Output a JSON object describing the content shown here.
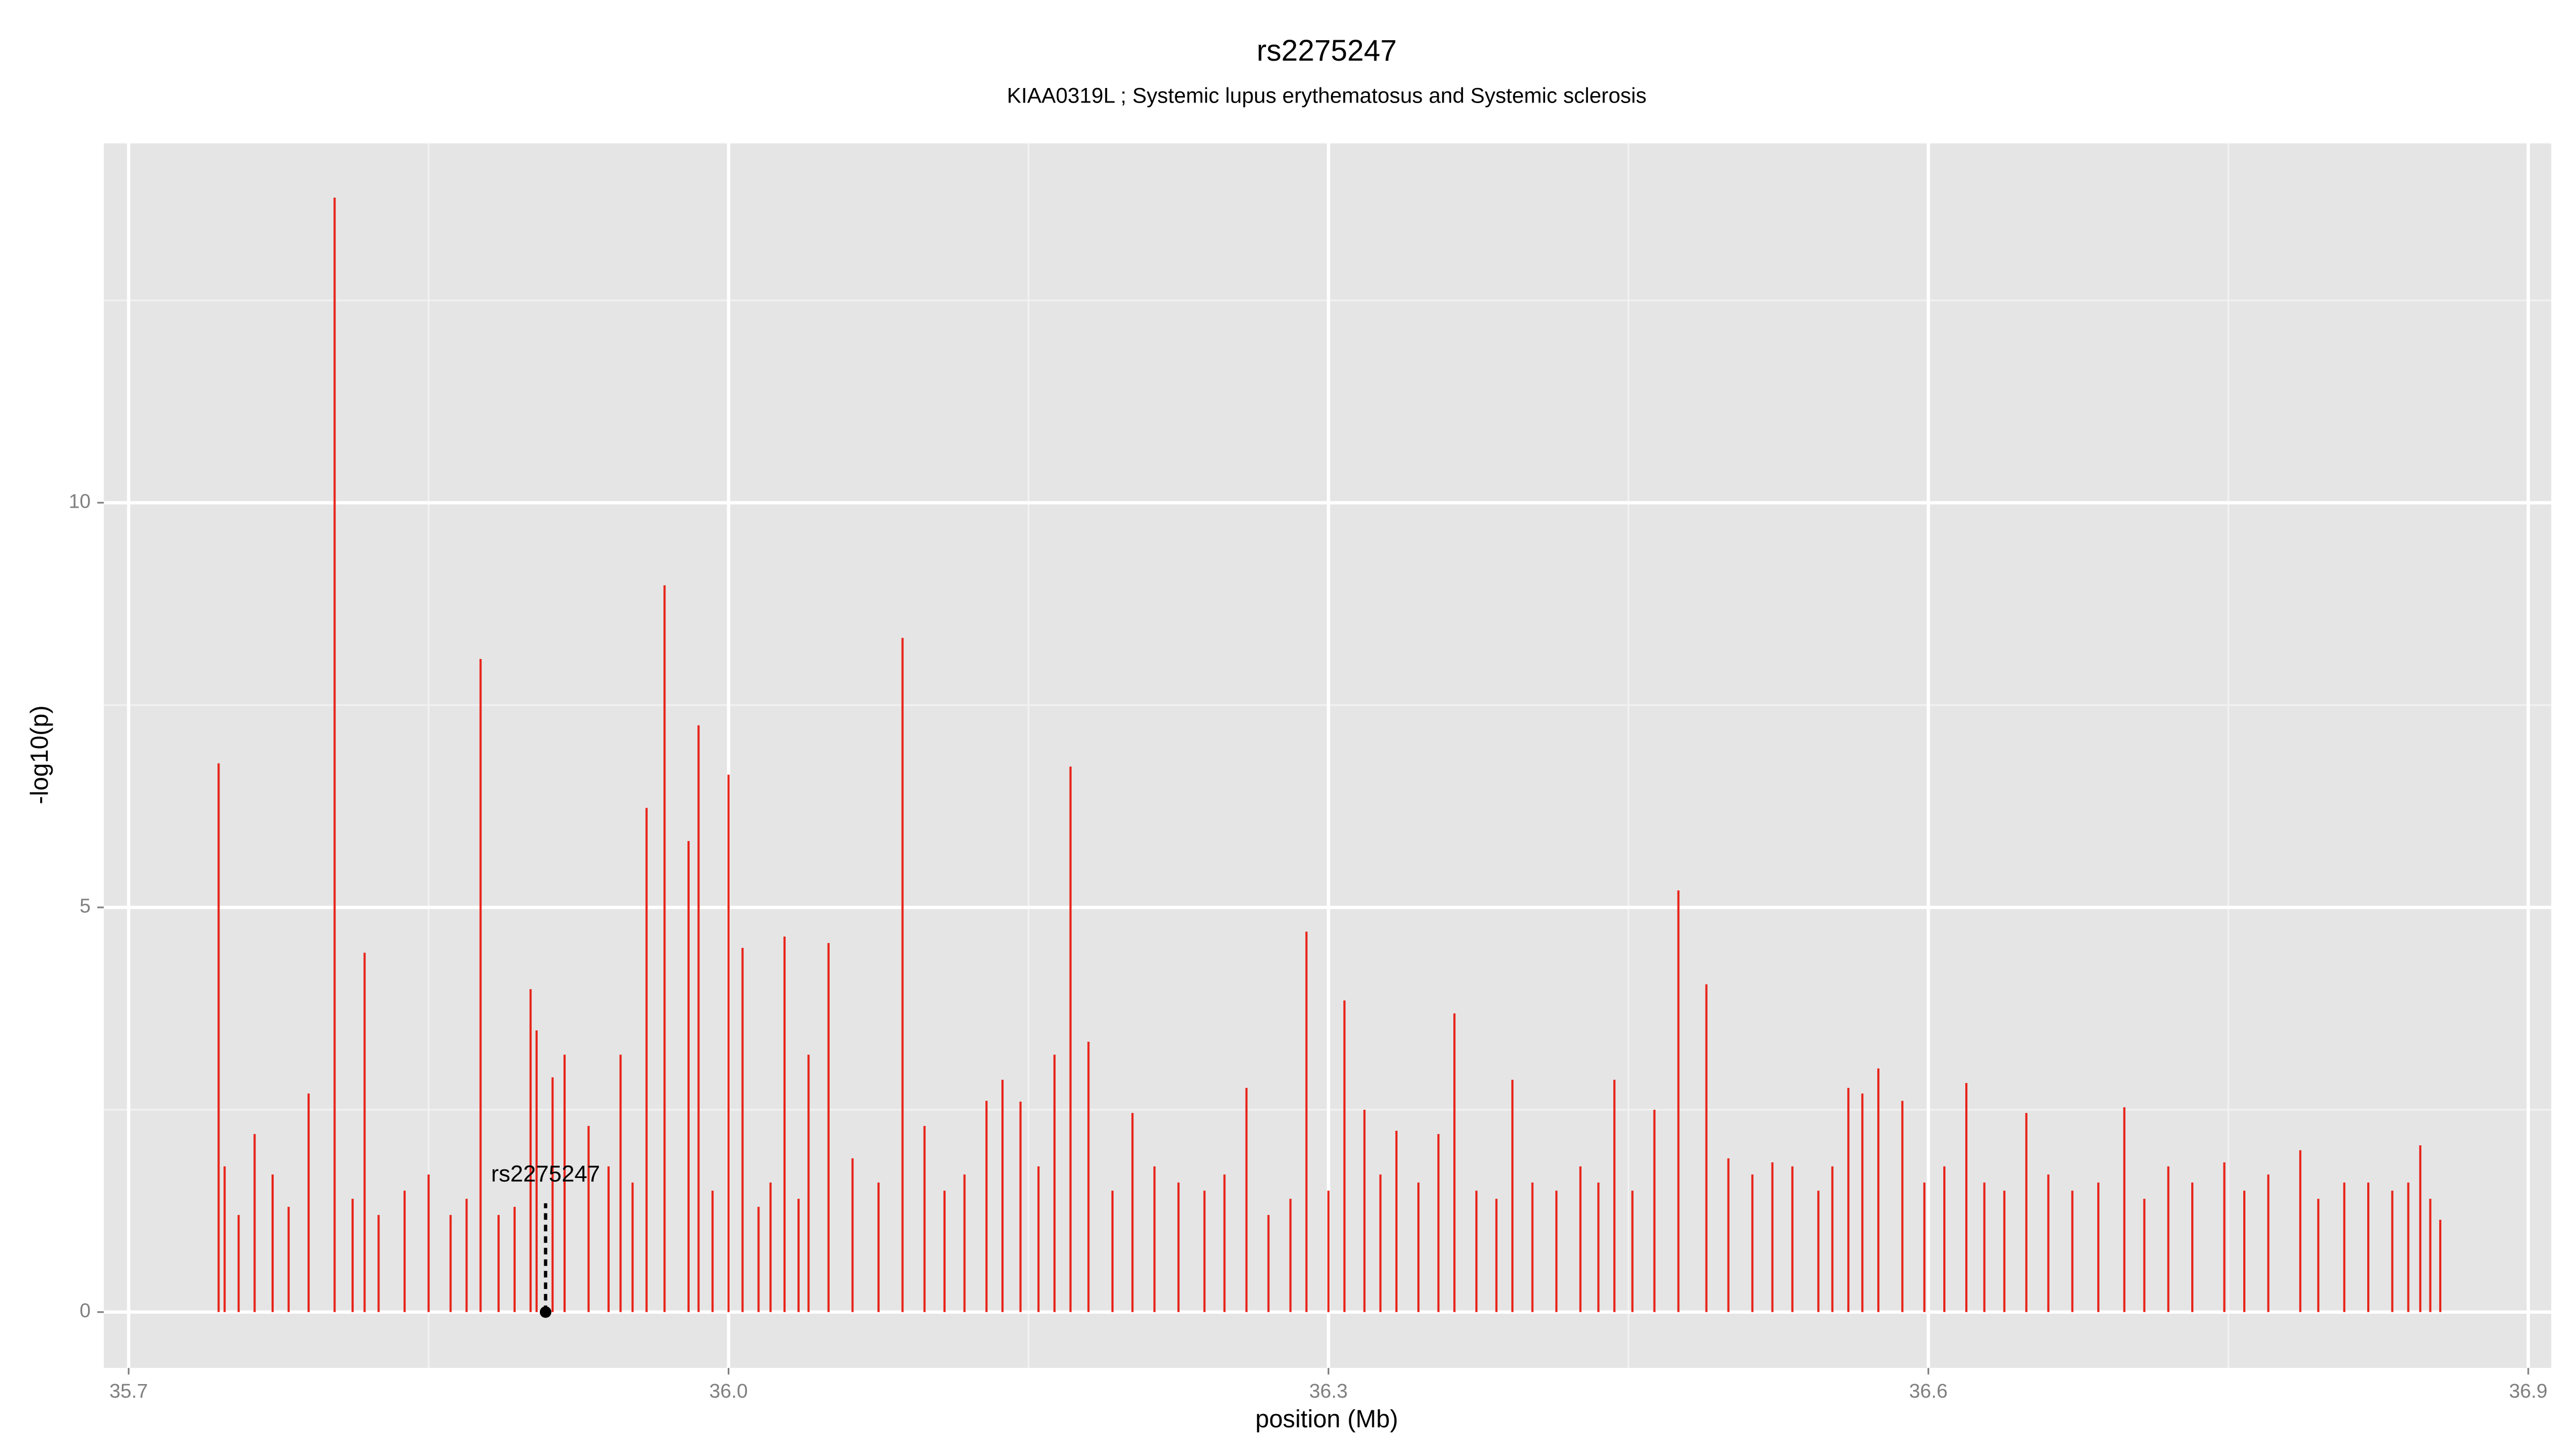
{
  "chart_data": {
    "type": "spike",
    "title": "rs2275247",
    "subtitle": "KIAA0319L ; Systemic lupus erythematosus and Systemic sclerosis",
    "xlabel": "position (Mb)",
    "ylabel": "-log10(p)",
    "color": "#e8241a",
    "grid": true,
    "xlim": [
      35.6876,
      36.9115
    ],
    "ylim": [
      -0.69,
      14.44
    ],
    "xticks": [
      35.7,
      {
        "value": 36,
        "label": "36.0"
      },
      36.3,
      36.6,
      36.9
    ],
    "yticks": [
      0,
      5,
      10
    ],
    "x": [
      35.745,
      35.803,
      35.818,
      35.876,
      35.901,
      35.904,
      35.918,
      35.946,
      35.959,
      35.968,
      35.98,
      35.985,
      36.0,
      36.007,
      36.028,
      36.04,
      36.05,
      36.087,
      36.129,
      36.137,
      36.163,
      36.171,
      36.18,
      36.202,
      36.259,
      36.289,
      36.308,
      36.334,
      36.363,
      36.392,
      36.443,
      36.475,
      36.489,
      36.522,
      36.56,
      36.575,
      36.587,
      36.619,
      36.649,
      36.698,
      36.748,
      36.786,
      36.846,
      36.856,
      35.748,
      35.755,
      35.763,
      35.772,
      35.78,
      35.79,
      35.812,
      35.825,
      35.838,
      35.85,
      35.861,
      35.869,
      35.885,
      35.893,
      35.912,
      35.93,
      35.94,
      35.952,
      35.992,
      36.015,
      36.021,
      36.035,
      36.062,
      36.075,
      36.098,
      36.108,
      36.118,
      36.146,
      36.155,
      36.192,
      36.213,
      36.225,
      36.238,
      36.248,
      36.27,
      36.281,
      36.3,
      36.318,
      36.326,
      36.345,
      36.355,
      36.374,
      36.384,
      36.402,
      36.414,
      36.426,
      36.435,
      36.452,
      36.463,
      36.5,
      36.512,
      36.532,
      36.545,
      36.552,
      36.567,
      36.598,
      36.608,
      36.628,
      36.638,
      36.66,
      36.672,
      36.685,
      36.708,
      36.72,
      36.732,
      36.758,
      36.77,
      36.795,
      36.808,
      36.82,
      36.832,
      36.84,
      36.851
    ],
    "values": [
      6.78,
      13.77,
      4.44,
      8.07,
      3.99,
      3.48,
      3.18,
      3.18,
      6.23,
      8.98,
      5.82,
      7.25,
      6.64,
      4.5,
      4.64,
      3.18,
      4.56,
      8.33,
      2.61,
      2.87,
      3.18,
      6.74,
      3.34,
      2.46,
      2.77,
      4.7,
      3.85,
      2.24,
      3.69,
      2.87,
      2.87,
      5.21,
      4.05,
      1.85,
      2.77,
      3.01,
      2.61,
      2.83,
      2.46,
      2.53,
      1.85,
      2.0,
      2.06,
      1.14,
      1.8,
      1.2,
      2.2,
      1.7,
      1.3,
      2.7,
      1.4,
      1.2,
      1.5,
      1.7,
      1.2,
      1.4,
      1.2,
      1.3,
      2.9,
      2.3,
      1.8,
      1.6,
      1.5,
      1.3,
      1.6,
      1.4,
      1.9,
      1.6,
      2.3,
      1.5,
      1.7,
      2.6,
      1.8,
      1.5,
      1.8,
      1.6,
      1.5,
      1.7,
      1.2,
      1.4,
      1.5,
      2.5,
      1.7,
      1.6,
      2.2,
      1.5,
      1.4,
      1.6,
      1.5,
      1.8,
      1.6,
      1.5,
      2.5,
      1.9,
      1.7,
      1.8,
      1.5,
      1.8,
      2.7,
      1.6,
      1.8,
      1.6,
      1.5,
      1.7,
      1.5,
      1.6,
      1.4,
      1.8,
      1.6,
      1.5,
      1.7,
      1.4,
      1.6,
      1.6,
      1.5,
      1.6,
      1.4
    ],
    "annotation": {
      "label": "rs2275247",
      "x": 35.9085,
      "y": 0
    }
  }
}
